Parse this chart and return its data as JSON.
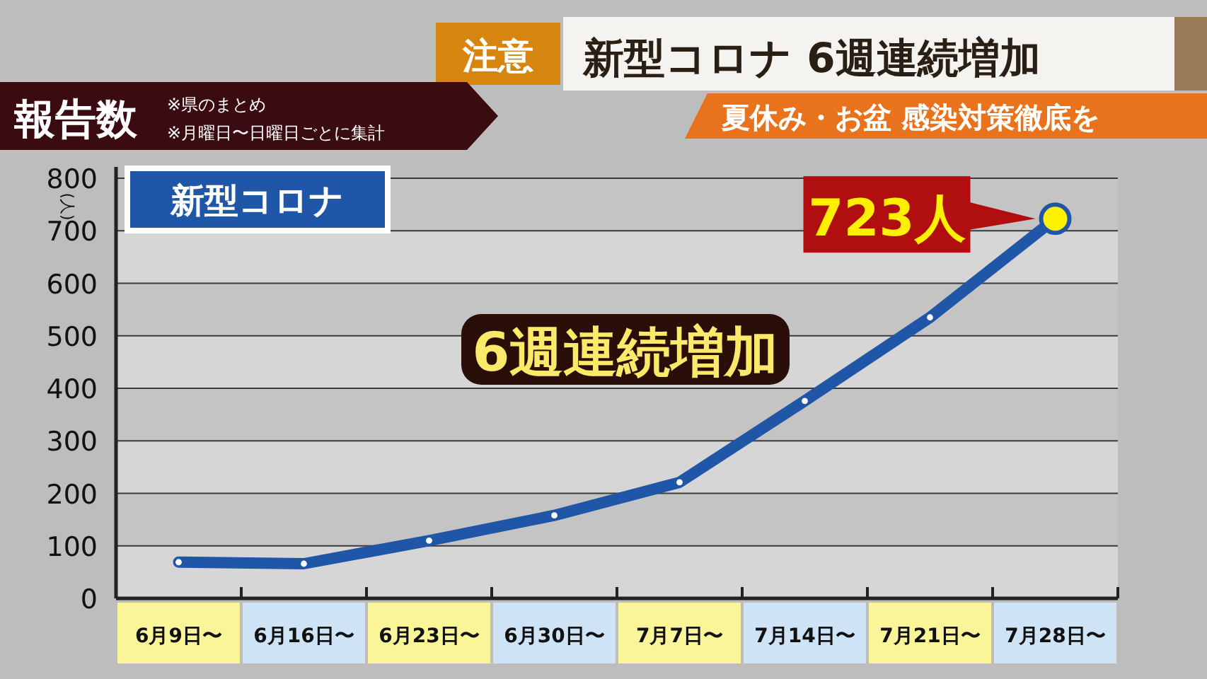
{
  "chart_data": {
    "type": "line",
    "title": "新型コロナ 6週連続増加",
    "subtitle": "夏休み・お盆 感染対策徹底を",
    "ylabel": "(人)",
    "annotations": [
      "注意",
      "報告数",
      "※県のまとめ",
      "※月曜日〜日曜日ごとに集計",
      "6週連続増加",
      {
        "text": "723人",
        "x": "7月28日〜",
        "y": 723
      }
    ],
    "categories": [
      "6月9日〜",
      "6月16日〜",
      "6月23日〜",
      "6月30日〜",
      "7月7日〜",
      "7月14日〜",
      "7月21日〜",
      "7月28日〜"
    ],
    "series": [
      {
        "name": "新型コロナ",
        "color": "#1f56a8",
        "values": [
          69,
          66,
          110,
          158,
          221,
          376,
          535,
          723
        ]
      }
    ],
    "ylim": [
      0,
      800
    ],
    "yticks": [
      0,
      100,
      200,
      300,
      400,
      500,
      600,
      700,
      800
    ],
    "grid": "y",
    "marker": "circle",
    "legend": "top left"
  }
}
